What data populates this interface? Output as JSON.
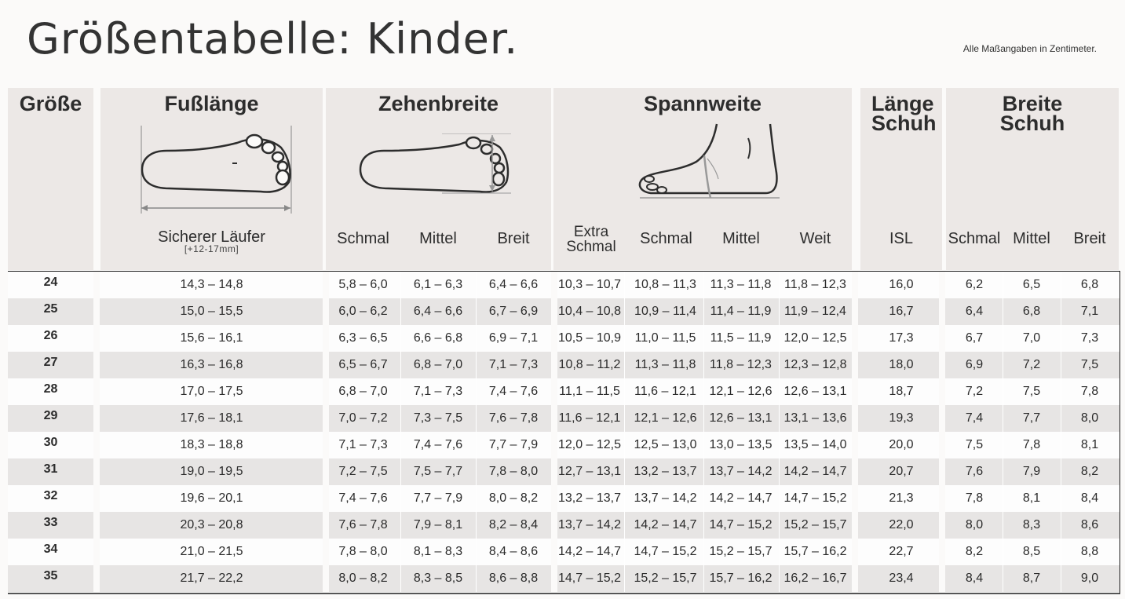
{
  "page": {
    "title": "Größentabelle: Kinder.",
    "note": "Alle Maßangaben in Zentimeter."
  },
  "headers": {
    "size": "Größe",
    "foot_length": {
      "title": "Fußlänge",
      "sub": "Sicherer Läufer",
      "small": "[+12-17mm]"
    },
    "toe_width": {
      "title": "Zehenbreite",
      "cols": [
        "Schmal",
        "Mittel",
        "Breit"
      ]
    },
    "instep": {
      "title": "Spannweite",
      "cols": [
        "Extra Schmal",
        "Schmal",
        "Mittel",
        "Weit"
      ]
    },
    "shoe_length": {
      "title": "Länge Schuh",
      "col": "ISL"
    },
    "shoe_width": {
      "title": "Breite Schuh",
      "cols": [
        "Schmal",
        "Mittel",
        "Breit"
      ]
    }
  },
  "rows": [
    [
      "24",
      "14,3 – 14,8",
      "5,8 – 6,0",
      "6,1 – 6,3",
      "6,4 – 6,6",
      "10,3 – 10,7",
      "10,8 – 11,3",
      "11,3 – 11,8",
      "11,8 – 12,3",
      "16,0",
      "6,2",
      "6,5",
      "6,8"
    ],
    [
      "25",
      "15,0 – 15,5",
      "6,0 – 6,2",
      "6,4 – 6,6",
      "6,7 – 6,9",
      "10,4 – 10,8",
      "10,9 – 11,4",
      "11,4 – 11,9",
      "11,9 – 12,4",
      "16,7",
      "6,4",
      "6,8",
      "7,1"
    ],
    [
      "26",
      "15,6 – 16,1",
      "6,3 – 6,5",
      "6,6 – 6,8",
      "6,9 – 7,1",
      "10,5 – 10,9",
      "11,0 – 11,5",
      "11,5 – 11,9",
      "12,0 – 12,5",
      "17,3",
      "6,7",
      "7,0",
      "7,3"
    ],
    [
      "27",
      "16,3 – 16,8",
      "6,5 – 6,7",
      "6,8 – 7,0",
      "7,1 – 7,3",
      "10,8 – 11,2",
      "11,3 – 11,8",
      "11,8 – 12,3",
      "12,3 – 12,8",
      "18,0",
      "6,9",
      "7,2",
      "7,5"
    ],
    [
      "28",
      "17,0 – 17,5",
      "6,8 – 7,0",
      "7,1 – 7,3",
      "7,4 – 7,6",
      "11,1 – 11,5",
      "11,6 – 12,1",
      "12,1 – 12,6",
      "12,6 – 13,1",
      "18,7",
      "7,2",
      "7,5",
      "7,8"
    ],
    [
      "29",
      "17,6 – 18,1",
      "7,0 – 7,2",
      "7,3 – 7,5",
      "7,6 – 7,8",
      "11,6 – 12,1",
      "12,1 – 12,6",
      "12,6 – 13,1",
      "13,1 – 13,6",
      "19,3",
      "7,4",
      "7,7",
      "8,0"
    ],
    [
      "30",
      "18,3 – 18,8",
      "7,1 – 7,3",
      "7,4 – 7,6",
      "7,7 – 7,9",
      "12,0 – 12,5",
      "12,5 – 13,0",
      "13,0 – 13,5",
      "13,5 – 14,0",
      "20,0",
      "7,5",
      "7,8",
      "8,1"
    ],
    [
      "31",
      "19,0 – 19,5",
      "7,2 – 7,5",
      "7,5 – 7,7",
      "7,8 – 8,0",
      "12,7 – 13,1",
      "13,2 – 13,7",
      "13,7 – 14,2",
      "14,2 – 14,7",
      "20,7",
      "7,6",
      "7,9",
      "8,2"
    ],
    [
      "32",
      "19,6 – 20,1",
      "7,4 – 7,6",
      "7,7 – 7,9",
      "8,0 – 8,2",
      "13,2 – 13,7",
      "13,7 – 14,2",
      "14,2 – 14,7",
      "14,7 – 15,2",
      "21,3",
      "7,8",
      "8,1",
      "8,4"
    ],
    [
      "33",
      "20,3 – 20,8",
      "7,6 – 7,8",
      "7,9 – 8,1",
      "8,2 – 8,4",
      "13,7 – 14,2",
      "14,2 – 14,7",
      "14,7 – 15,2",
      "15,2 – 15,7",
      "22,0",
      "8,0",
      "8,3",
      "8,6"
    ],
    [
      "34",
      "21,0 – 21,5",
      "7,8 – 8,0",
      "8,1 – 8,3",
      "8,4 – 8,6",
      "14,2 – 14,7",
      "14,7 – 15,2",
      "15,2 – 15,7",
      "15,7 – 16,2",
      "22,7",
      "8,2",
      "8,5",
      "8,8"
    ],
    [
      "35",
      "21,7 – 22,2",
      "8,0 – 8,2",
      "8,3 – 8,5",
      "8,6 – 8,8",
      "14,7 – 15,2",
      "15,2 – 15,7",
      "15,7 – 16,2",
      "16,2 – 16,7",
      "23,4",
      "8,4",
      "8,7",
      "9,0"
    ]
  ]
}
